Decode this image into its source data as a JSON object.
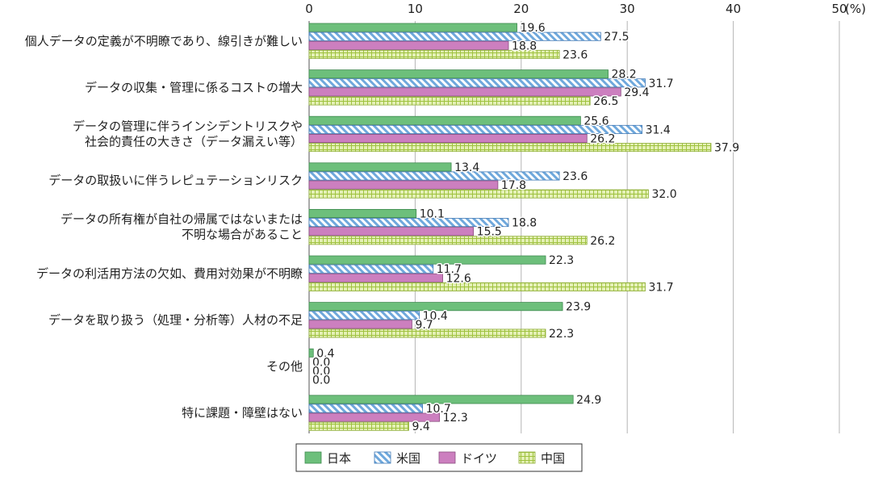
{
  "chart_data": {
    "type": "bar",
    "orientation": "horizontal",
    "unit_label": "(%)",
    "xlim": [
      0,
      50
    ],
    "xticks": [
      0,
      10,
      20,
      30,
      40,
      50
    ],
    "grid": true,
    "legend_position": "bottom",
    "categories": [
      "個人データの定義が不明瞭であり、線引きが難しい",
      "データの収集・管理に係るコストの増大",
      "データの管理に伴うインシデントリスクや\n社会的責任の大きさ（データ漏えい等）",
      "データの取扱いに伴うレピュテーションリスク",
      "データの所有権が自社の帰属ではないまたは\n不明な場合があること",
      "データの利活用方法の欠如、費用対効果が不明瞭",
      "データを取り扱う（処理・分析等）人材の不足",
      "その他",
      "特に課題・障壁はない"
    ],
    "series": [
      {
        "name": "日本",
        "color": "#6dbf7b",
        "pattern": "solid",
        "values": [
          19.6,
          28.2,
          25.6,
          13.4,
          10.1,
          22.3,
          23.9,
          0.4,
          24.9
        ]
      },
      {
        "name": "米国",
        "color": "#8fbbe6",
        "pattern": "diagonal-hatch",
        "values": [
          27.5,
          31.7,
          31.4,
          23.6,
          18.8,
          11.7,
          10.4,
          0.0,
          10.7
        ]
      },
      {
        "name": "ドイツ",
        "color": "#cc7fbf",
        "pattern": "solid",
        "values": [
          18.8,
          29.4,
          26.2,
          17.8,
          15.5,
          12.6,
          9.7,
          0.0,
          12.3
        ]
      },
      {
        "name": "中国",
        "color": "#cfe28a",
        "pattern": "grid",
        "values": [
          23.6,
          26.5,
          37.9,
          32.0,
          26.2,
          31.7,
          22.3,
          0.0,
          9.4
        ]
      }
    ]
  }
}
